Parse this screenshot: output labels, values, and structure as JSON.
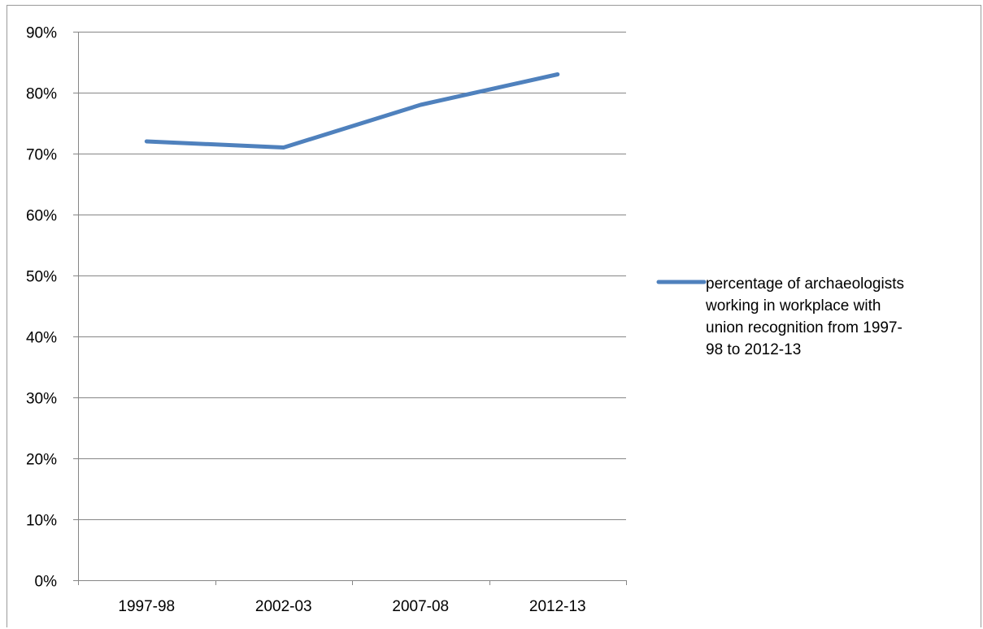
{
  "chart_data": {
    "type": "line",
    "title": "",
    "xlabel": "",
    "ylabel": "",
    "categories": [
      "1997-98",
      "2002-03",
      "2007-08",
      "2012-13"
    ],
    "series": [
      {
        "name": "percentage of archaeologists working in workplace with union recognition from 1997-98 to 2012-13",
        "values": [
          72,
          71,
          78,
          83
        ],
        "color": "#4f81bd"
      }
    ],
    "ylim": [
      0,
      90
    ],
    "yticks": [
      0,
      10,
      20,
      30,
      40,
      50,
      60,
      70,
      80,
      90
    ],
    "ytick_labels": [
      "0%",
      "10%",
      "20%",
      "30%",
      "40%",
      "50%",
      "60%",
      "70%",
      "80%",
      "90%"
    ],
    "grid": true,
    "legend_position": "right",
    "legend_lines": [
      "percentage of archaeologists",
      "working in workplace with",
      "union recognition from 1997-",
      "98 to 2012-13"
    ]
  }
}
